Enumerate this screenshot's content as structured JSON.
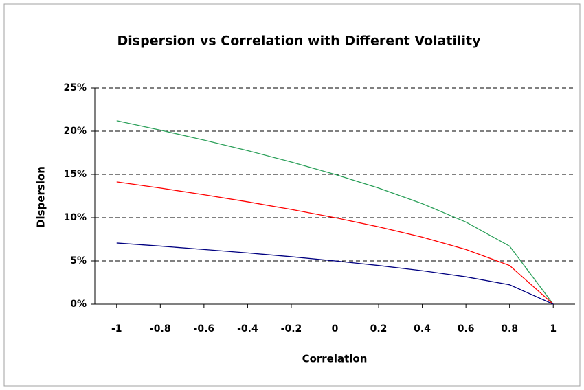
{
  "chart_data": {
    "type": "line",
    "title": "Dispersion vs Correlation with Different Volatility",
    "x_label": "Correlation",
    "y_label": "Dispersion",
    "x": [
      -1,
      -0.8,
      -0.6,
      -0.4,
      -0.2,
      0,
      0.2,
      0.4,
      0.6,
      0.8,
      1
    ],
    "series": [
      {
        "color": "#2ca05a",
        "values": [
          21.21,
          20.12,
          18.97,
          17.75,
          16.43,
          15.0,
          13.42,
          11.62,
          9.49,
          6.71,
          0
        ]
      },
      {
        "color": "#ff0000",
        "values": [
          14.14,
          13.42,
          12.65,
          11.83,
          10.95,
          10.0,
          8.94,
          7.75,
          6.32,
          4.47,
          0
        ]
      },
      {
        "color": "#000080",
        "values": [
          7.07,
          6.71,
          6.32,
          5.92,
          5.48,
          5.0,
          4.47,
          3.87,
          3.16,
          2.24,
          0
        ]
      }
    ],
    "xlim": [
      -1.1,
      1.1
    ],
    "xticks": [
      -1,
      -0.8,
      -0.6,
      -0.4,
      -0.2,
      0,
      0.2,
      0.4,
      0.6,
      0.8,
      1
    ],
    "ylim": [
      0,
      25
    ],
    "yticks": [
      {
        "value": 0,
        "label": "0%"
      },
      {
        "value": 5,
        "label": "5%"
      },
      {
        "value": 10,
        "label": "10%"
      },
      {
        "value": 15,
        "label": "15%"
      },
      {
        "value": 20,
        "label": "20%"
      },
      {
        "value": 25,
        "label": "25%"
      }
    ],
    "grid": true
  }
}
